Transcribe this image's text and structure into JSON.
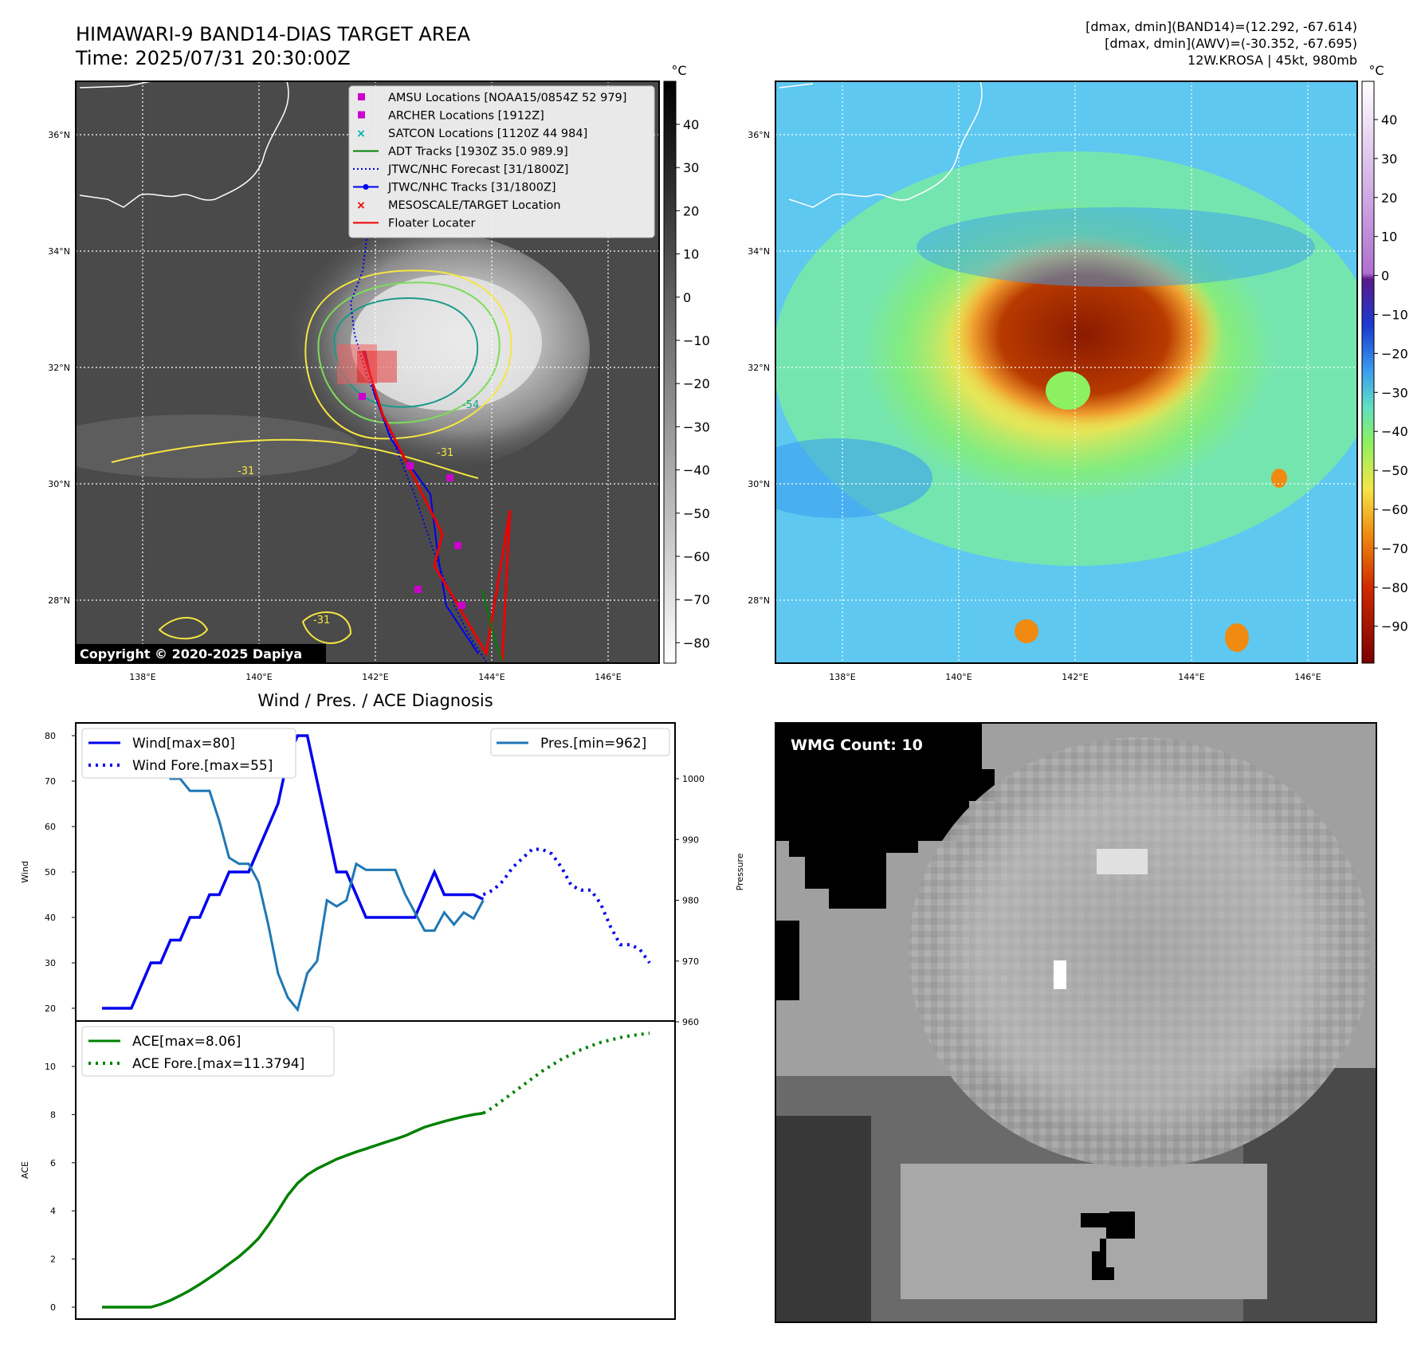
{
  "header": {
    "title_line1": "HIMAWARI-9 BAND14-DIAS TARGET AREA",
    "title_line2": "Time: 2025/07/31 20:30:00Z",
    "info_line1": "[dmax, dmin](BAND14)=(12.292, -67.614)",
    "info_line2": "[dmax, dmin](AWV)=(-30.352, -67.695)",
    "info_line3": "12W.KROSA | 45kt, 980mb"
  },
  "maps": {
    "lat_labels": [
      "36°N",
      "34°N",
      "32°N",
      "30°N",
      "28°N"
    ],
    "lon_labels": [
      "138°E",
      "140°E",
      "142°E",
      "144°E",
      "146°E"
    ],
    "copyright": "Copyright © 2020-2025 Dapiya",
    "contour_labels": [
      "-31",
      "-54",
      "-31",
      "-31"
    ],
    "colorbar_unit": "°C",
    "ir_colorbar_ticks": [
      "40",
      "30",
      "20",
      "10",
      "0",
      "−10",
      "−20",
      "−30",
      "−40",
      "−50",
      "−60",
      "−70",
      "−80"
    ],
    "awv_colorbar_ticks": [
      "40",
      "30",
      "20",
      "10",
      "0",
      "−10",
      "−20",
      "−30",
      "−40",
      "−50",
      "−60",
      "−70",
      "−80",
      "−90"
    ],
    "colors": {
      "track": "#0000ee",
      "floater": "#ee0000",
      "adt": "#008000",
      "amsu": "#cc00cc",
      "satcon": "#00b0b0",
      "contour_yellow": "#f5e642",
      "contour_green": "#7ddc5a",
      "contour_teal": "#1a9a8a"
    },
    "legend": [
      {
        "label": "AMSU Locations [NOAA15/0854Z 52 979]",
        "marker": "square",
        "color": "#cc00cc"
      },
      {
        "label": "ARCHER Locations [1912Z]",
        "marker": "square",
        "color": "#cc00cc"
      },
      {
        "label": "SATCON Locations [1120Z 44 984]",
        "marker": "x",
        "color": "#00b0b0"
      },
      {
        "label": "ADT Tracks [1930Z 35.0 989.9]",
        "marker": "line",
        "color": "#008000"
      },
      {
        "label": "JTWC/NHC Forecast [31/1800Z]",
        "marker": "dotted",
        "color": "#0000ee"
      },
      {
        "label": "JTWC/NHC Tracks [31/1800Z]",
        "marker": "line-dot",
        "color": "#0000ee"
      },
      {
        "label": "MESOSCALE/TARGET Location",
        "marker": "x",
        "color": "#ee0000"
      },
      {
        "label": "Floater Locater",
        "marker": "line",
        "color": "#ee0000"
      }
    ]
  },
  "diagnosis": {
    "title": "Wind / Pres. / ACE Diagnosis",
    "wind_ylabel": "Wind",
    "pres_ylabel": "Pressure",
    "ace_ylabel": "ACE",
    "legend_wind": "Wind[max=80]",
    "legend_wind_fore": "Wind Fore.[max=55]",
    "legend_pres": "Pres.[min=962]",
    "legend_ace": "ACE[max=8.06]",
    "legend_ace_fore": "ACE Fore.[max=11.3794]"
  },
  "wmg": {
    "label": "WMG Count: 10"
  },
  "chart_data": [
    {
      "type": "line",
      "title": "Wind / Pres. / ACE Diagnosis",
      "ylabel": "Wind",
      "ylim": [
        18,
        82
      ],
      "x": [
        0,
        1,
        2,
        3,
        4,
        5,
        6,
        7,
        8,
        9,
        10,
        11,
        12,
        13,
        14,
        15,
        16,
        17,
        18,
        19,
        20,
        21,
        22,
        23,
        24,
        25,
        26,
        27,
        28,
        29,
        30,
        31,
        32,
        33,
        34,
        35,
        36,
        37,
        38,
        39,
        40,
        41,
        42,
        43,
        44,
        45,
        46,
        47,
        48,
        49,
        50,
        51,
        52,
        53,
        54,
        55,
        56
      ],
      "series": [
        {
          "name": "Wind[max=80]",
          "color": "#0000ee",
          "style": "solid",
          "axis": "left",
          "x": [
            0,
            1,
            2,
            3,
            4,
            5,
            6,
            7,
            8,
            9,
            10,
            11,
            12,
            13,
            14,
            15,
            16,
            17,
            18,
            19,
            20,
            21,
            22,
            23,
            24,
            25,
            26,
            27,
            28,
            29,
            30,
            31,
            32,
            33,
            34,
            35,
            36,
            37,
            38,
            39
          ],
          "values": [
            20,
            20,
            20,
            20,
            25,
            30,
            30,
            35,
            35,
            40,
            40,
            45,
            45,
            50,
            50,
            50,
            55,
            60,
            65,
            75,
            80,
            80,
            70,
            60,
            50,
            50,
            45,
            40,
            40,
            40,
            40,
            40,
            40,
            45,
            50,
            45,
            45,
            45,
            45,
            44
          ]
        },
        {
          "name": "Wind Fore.[max=55]",
          "color": "#0000ee",
          "style": "dotted",
          "axis": "left",
          "x": [
            39,
            40,
            41,
            42,
            43,
            44,
            45,
            46,
            47,
            48,
            49,
            50,
            51,
            52,
            53,
            54,
            55,
            56
          ],
          "values": [
            45,
            46,
            48,
            51,
            53,
            55,
            55,
            54,
            51,
            47,
            46,
            46,
            43,
            38,
            34,
            34,
            33,
            30
          ]
        },
        {
          "name": "Pres.[min=962]",
          "color": "#1f77b4",
          "style": "solid",
          "axis": "right",
          "ylim": [
            960,
            1008
          ],
          "x": [
            0,
            1,
            2,
            3,
            4,
            5,
            6,
            7,
            8,
            9,
            10,
            11,
            12,
            13,
            14,
            15,
            16,
            17,
            18,
            19,
            20,
            21,
            22,
            23,
            24,
            25,
            26,
            27,
            28,
            29,
            30,
            31,
            32,
            33,
            34,
            35,
            36,
            37,
            38,
            39
          ],
          "values": [
            1006,
            1006,
            1006,
            1005,
            1005,
            1003,
            1003,
            1000,
            1000,
            998,
            998,
            998,
            993,
            987,
            986,
            986,
            983,
            976,
            968,
            964,
            962,
            968,
            970,
            980,
            979,
            980,
            986,
            985,
            985,
            985,
            985,
            981,
            978,
            975,
            975,
            978,
            976,
            978,
            977,
            980
          ]
        }
      ]
    },
    {
      "type": "line",
      "ylabel": "ACE",
      "ylim": [
        -0.5,
        12
      ],
      "series": [
        {
          "name": "ACE[max=8.06]",
          "color": "#008000",
          "style": "solid",
          "x": [
            0,
            1,
            2,
            3,
            4,
            5,
            6,
            7,
            8,
            9,
            10,
            11,
            12,
            13,
            14,
            15,
            16,
            17,
            18,
            19,
            20,
            21,
            22,
            23,
            24,
            25,
            26,
            27,
            28,
            29,
            30,
            31,
            32,
            33,
            34,
            35,
            36,
            37,
            38,
            39
          ],
          "values": [
            0,
            0,
            0,
            0,
            0,
            0,
            0.12,
            0.28,
            0.48,
            0.7,
            0.95,
            1.22,
            1.5,
            1.8,
            2.1,
            2.45,
            2.85,
            3.4,
            4.0,
            4.65,
            5.15,
            5.5,
            5.75,
            5.95,
            6.15,
            6.3,
            6.45,
            6.58,
            6.72,
            6.85,
            6.98,
            7.12,
            7.3,
            7.48,
            7.6,
            7.72,
            7.82,
            7.92,
            8.0,
            8.06
          ]
        },
        {
          "name": "ACE Fore.[max=11.3794]",
          "color": "#008000",
          "style": "dotted",
          "x": [
            39,
            40,
            41,
            42,
            43,
            44,
            45,
            46,
            47,
            48,
            49,
            50,
            51,
            52,
            53,
            54,
            55,
            56
          ],
          "values": [
            8.06,
            8.3,
            8.6,
            8.9,
            9.2,
            9.5,
            9.8,
            10.05,
            10.3,
            10.5,
            10.7,
            10.85,
            11.0,
            11.1,
            11.2,
            11.27,
            11.33,
            11.38
          ]
        }
      ]
    }
  ]
}
